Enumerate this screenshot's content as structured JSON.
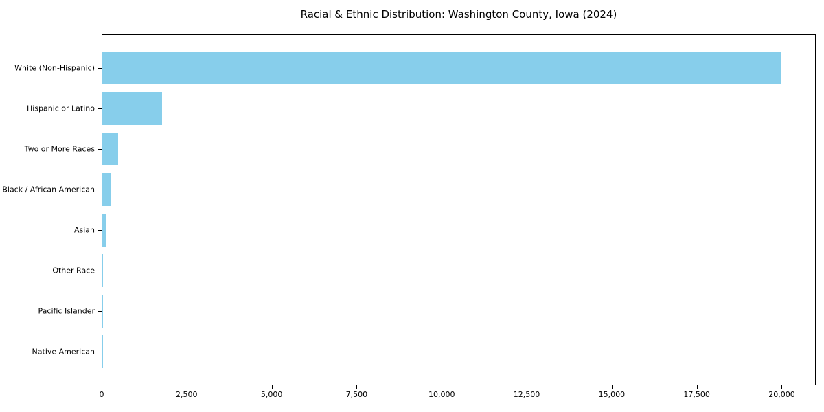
{
  "chart_data": {
    "type": "bar",
    "orientation": "horizontal",
    "title": "Racial & Ethnic Distribution: Washington County, Iowa (2024)",
    "categories": [
      "White (Non-Hispanic)",
      "Hispanic or Latino",
      "Two or More Races",
      "Black / African American",
      "Asian",
      "Other Race",
      "Pacific Islander",
      "Native American"
    ],
    "values": [
      20000,
      1750,
      460,
      260,
      110,
      30,
      10,
      5
    ],
    "xlabel": "",
    "ylabel": "",
    "xlim": [
      0,
      21000
    ],
    "xticks": [
      0,
      2500,
      5000,
      7500,
      10000,
      12500,
      15000,
      17500,
      20000
    ],
    "xtick_labels": [
      "0",
      "2,500",
      "5,000",
      "7,500",
      "10,000",
      "12,500",
      "15,000",
      "17,500",
      "20,000"
    ],
    "grid": false,
    "legend": "none",
    "bar_color": "#87CEEB",
    "axis_color": "#000000",
    "text_color": "#000000",
    "background_color": "#FFFFFF"
  }
}
